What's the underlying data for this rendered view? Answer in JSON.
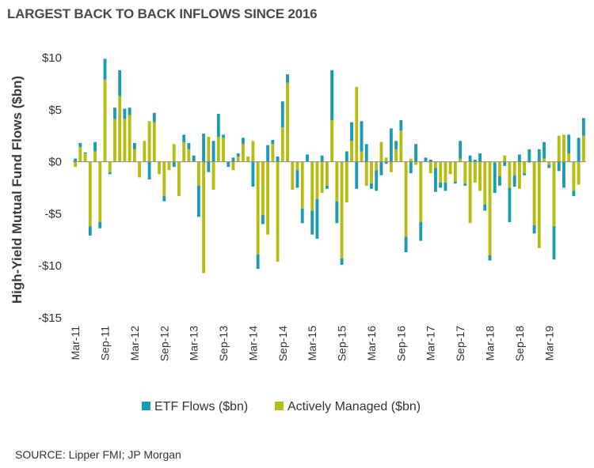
{
  "title": "LARGEST BACK TO BACK INFLOWS SINCE 2016",
  "source": "SOURCE: Lipper FMI; JP Morgan",
  "chart_data": {
    "type": "bar",
    "stacked": true,
    "ylabel": "High-Yield Mutual Fund Flows ($bn)",
    "ylim": [
      -15,
      10
    ],
    "yticks": [
      10,
      5,
      0,
      -5,
      -10,
      -15
    ],
    "ytick_labels": [
      "$10",
      "$5",
      "$0",
      "-$5",
      "-$10",
      "-$15"
    ],
    "xtick_labels": [
      "Mar-11",
      "Sep-11",
      "Mar-12",
      "Sep-12",
      "Mar-13",
      "Sep-13",
      "Mar-14",
      "Sep-14",
      "Mar-15",
      "Sep-15",
      "Mar-16",
      "Sep-16",
      "Mar-17",
      "Sep-17",
      "Mar-18",
      "Sep-18",
      "Mar-19"
    ],
    "legend_position": "bottom",
    "grid": false,
    "period": "monthly, Mar-11 to Mar-19",
    "series": [
      {
        "name": "ETF Flows ($bn)",
        "color": "#1a9bb3",
        "values": [
          0.3,
          0.4,
          0.1,
          -0.9,
          0.9,
          -0.6,
          2.0,
          -0.2,
          1.1,
          2.5,
          1.0,
          0.7,
          0.6,
          0,
          0,
          -1.7,
          0.9,
          0,
          -0.5,
          0,
          -0.5,
          0,
          0.7,
          0.6,
          0.6,
          -3.0,
          2.7,
          -1.0,
          2.0,
          2.2,
          0.3,
          -0.5,
          0.4,
          0.3,
          0.6,
          0,
          -2.4,
          -1.4,
          -0.9,
          1.6,
          0.4,
          0.5,
          2.5,
          0.8,
          0,
          -1.7,
          -1.4,
          0.7,
          -2.3,
          -3.8,
          0.6,
          -0.3,
          4.8,
          -2.1,
          -0.6,
          1.0,
          1.8,
          -2.6,
          2.9,
          1.7,
          -0.5,
          -2.0,
          -1.3,
          -0.2,
          3.2,
          0.8,
          1.0,
          -1.5,
          -1.1,
          1.7,
          -1.8,
          0.4,
          0.2,
          -2.3,
          -0.5,
          -0.8,
          0,
          -0.2,
          1.7,
          -0.2,
          0.6,
          0.2,
          0.8,
          -0.6,
          -0.5,
          -2.9,
          -0.9,
          -0.4,
          -3.3,
          -1.1,
          0.7,
          -0.2,
          1.2,
          -0.8,
          1.2,
          1.6,
          -0.3,
          -3.2,
          -0.9,
          -2.5,
          1.8,
          -0.5,
          2.3,
          1.7
        ],
        "_note_len": "values listed per bar"
      },
      {
        "name": "Actively Managed ($bn)",
        "color": "#b7bd10",
        "values": [
          -0.5,
          1.4,
          0.8,
          -6.2,
          1.0,
          -5.8,
          7.9,
          -1.0,
          4.1,
          6.3,
          4.1,
          4.5,
          1.2,
          -1.5,
          2.0,
          3.9,
          3.8,
          -1.2,
          -3.3,
          -0.8,
          1.7,
          -3.3,
          1.9,
          1.2,
          0,
          -2.3,
          -10.7,
          2.4,
          -2.7,
          2.4,
          2.3,
          0,
          -0.8,
          0.5,
          1.7,
          0.5,
          2.0,
          -8.9,
          -5.1,
          -7.0,
          1.7,
          -9.6,
          3.3,
          7.6,
          -2.7,
          -0.8,
          -4.5,
          0,
          -4.7,
          -3.6,
          -3.0,
          -2.3,
          4.0,
          -3.8,
          -9.3,
          -3.9,
          2.0,
          7.2,
          1.0,
          -2.3,
          -2.1,
          -0.8,
          1.9,
          0.4,
          -1.0,
          1.2,
          3.0,
          -7.2,
          0.3,
          -0.3,
          -5.8,
          0,
          -1.1,
          -0.6,
          -2.0,
          -2.0,
          -1.2,
          -1.9,
          0.3,
          -2.1,
          -5.9,
          -2.0,
          -2.8,
          -4.1,
          -9.0,
          -0.1,
          -1.4,
          0.6,
          -2.5,
          -1.3,
          -2.6,
          -1.1,
          -0.1,
          -6.1,
          -8.3,
          0.3,
          -0.3,
          -6.2,
          2.5,
          2.6,
          0.8,
          -2.8,
          -2.2,
          2.5
        ]
      }
    ]
  }
}
